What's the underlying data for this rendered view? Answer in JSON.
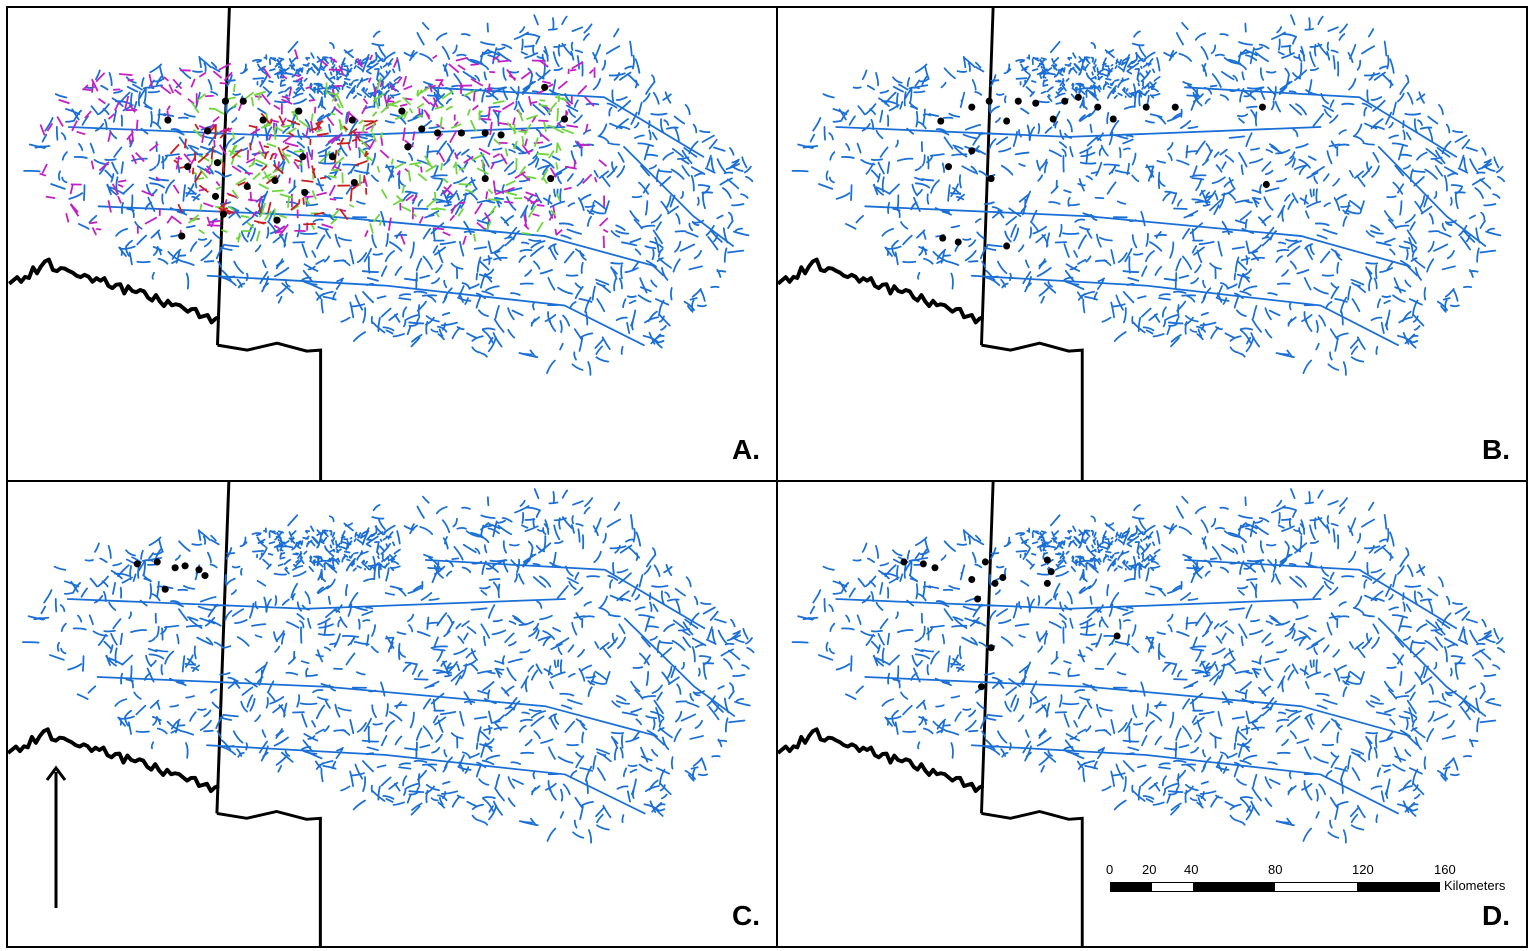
{
  "figure": {
    "panels": [
      {
        "id": "A",
        "label": "A."
      },
      {
        "id": "B",
        "label": "B."
      },
      {
        "id": "C",
        "label": "C."
      },
      {
        "id": "D",
        "label": "D."
      }
    ],
    "scale_bar": {
      "ticks": [
        "0",
        "20",
        "40",
        "80",
        "120",
        "160"
      ],
      "tick_values": [
        0,
        20,
        40,
        80,
        120,
        160
      ],
      "unit": "Kilometers"
    },
    "north_arrow": {
      "icon": "north-arrow-icon"
    },
    "colors": {
      "streams": "#1a6fd6",
      "category_magenta": "#c41fc4",
      "category_green": "#6cd63a",
      "category_red": "#c81e1e",
      "points": "#000000",
      "boundaries": "#000000"
    }
  }
}
